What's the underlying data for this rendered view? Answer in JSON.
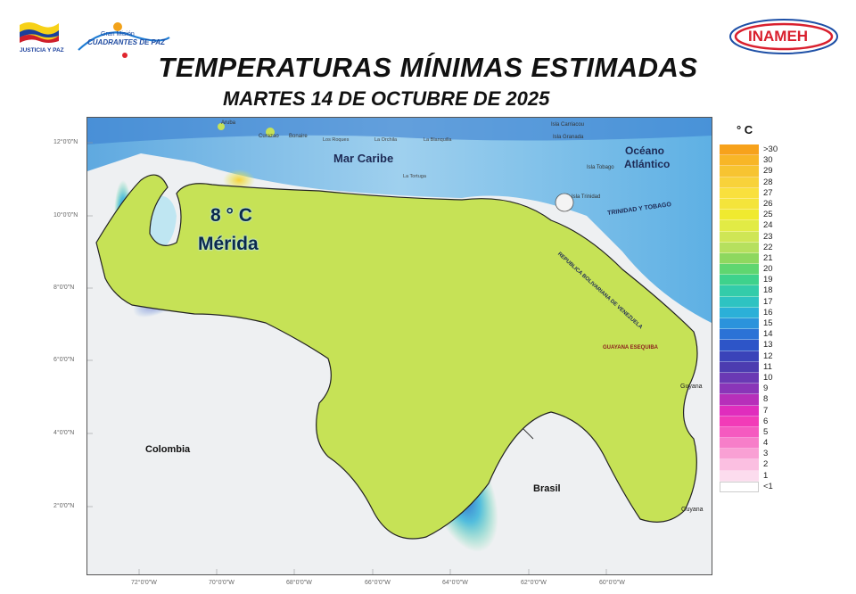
{
  "header": {
    "title": "TEMPERATURAS MÍNIMAS ESTIMADAS",
    "subtitle": "MARTES 14 DE OCTUBRE DE 2025"
  },
  "logos": {
    "left_flag_caption": "JUSTICIA Y PAZ",
    "left_mission_line1": "Gran Misión",
    "left_mission_line2": "CUADRANTES DE PAZ",
    "right": "INAMEH"
  },
  "map": {
    "seas": {
      "caribbean": "Mar Caribe",
      "atlantic_line1": "Océano",
      "atlantic_line2": "Atlántico"
    },
    "countries": {
      "colombia": "Colombia",
      "brasil": "Brasil",
      "guyana_top": "Guyana",
      "guyana_bottom": "Guyana"
    },
    "islands": {
      "aruba": "Aruba",
      "curazao": "Curazao",
      "bonaire": "Bonaire",
      "los_roques": "Los Roques",
      "la_orchila": "La Orchila",
      "la_blanquilla": "La Blanquilla",
      "la_tortuga": "La Tortuga",
      "carriacou": "Isla Carriacou",
      "granada": "Isla Granada",
      "tobago": "Isla Tobago",
      "trinidad": "Isla Trinidad"
    },
    "border_labels": {
      "trinidad_tobago": "TRINIDAD Y TOBAGO",
      "venezuela": "REPUBLICA BOLIVARIANA DE VENEZUELA",
      "guayana": "GUAYANA ESEQUIBA"
    },
    "highlight": {
      "value": "8 ° C",
      "place": "Mérida"
    },
    "lat_ticks": [
      "12°0'0\"N",
      "10°0'0\"N",
      "8°0'0\"N",
      "6°0'0\"N",
      "4°0'0\"N",
      "2°0'0\"N"
    ],
    "lon_ticks": [
      "72°0'0\"W",
      "70°0'0\"W",
      "68°0'0\"W",
      "66°0'0\"W",
      "64°0'0\"W",
      "62°0'0\"W",
      "60°0'0\"W"
    ]
  },
  "legend": {
    "unit": "° C",
    "entries": [
      {
        "label": ">30",
        "color": "#f7a21b"
      },
      {
        "label": "30",
        "color": "#f8b627"
      },
      {
        "label": "29",
        "color": "#f7c431"
      },
      {
        "label": "28",
        "color": "#f8d23a"
      },
      {
        "label": "27",
        "color": "#f9e03d"
      },
      {
        "label": "26",
        "color": "#f4e43b"
      },
      {
        "label": "25",
        "color": "#f0ea2f"
      },
      {
        "label": "24",
        "color": "#e2eb45"
      },
      {
        "label": "23",
        "color": "#cfe655"
      },
      {
        "label": "22",
        "color": "#b6e05e"
      },
      {
        "label": "21",
        "color": "#8ed85f"
      },
      {
        "label": "20",
        "color": "#5fd670"
      },
      {
        "label": "19",
        "color": "#3ed28c"
      },
      {
        "label": "18",
        "color": "#33ccaa"
      },
      {
        "label": "17",
        "color": "#2ec3c2"
      },
      {
        "label": "16",
        "color": "#2bb0d8"
      },
      {
        "label": "15",
        "color": "#2b93dc"
      },
      {
        "label": "14",
        "color": "#2b72d6"
      },
      {
        "label": "13",
        "color": "#2d55c8"
      },
      {
        "label": "12",
        "color": "#3a43b9"
      },
      {
        "label": "11",
        "color": "#4c3cb0"
      },
      {
        "label": "10",
        "color": "#6a39b4"
      },
      {
        "label": "9",
        "color": "#8a35b8"
      },
      {
        "label": "8",
        "color": "#b72fba"
      },
      {
        "label": "7",
        "color": "#e02dbd"
      },
      {
        "label": "6",
        "color": "#f23bb8"
      },
      {
        "label": "5",
        "color": "#f55ac0"
      },
      {
        "label": "4",
        "color": "#f77ec9"
      },
      {
        "label": "3",
        "color": "#f9a0d4"
      },
      {
        "label": "2",
        "color": "#fbbfe1"
      },
      {
        "label": "1",
        "color": "#fcdcee"
      },
      {
        "label": "<1",
        "color": "#ffffff"
      }
    ]
  }
}
